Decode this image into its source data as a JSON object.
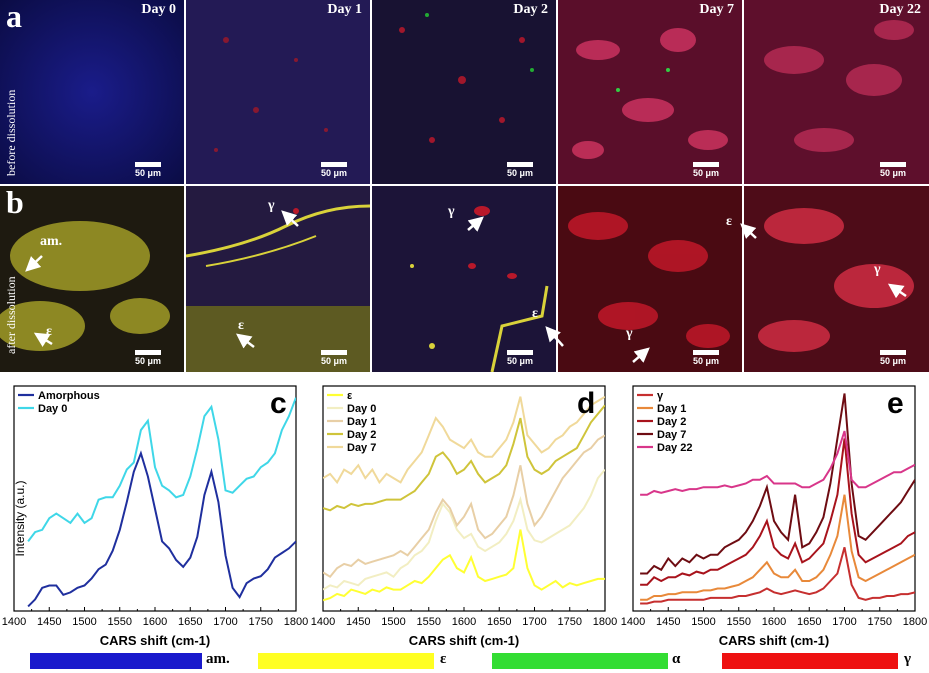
{
  "figure": {
    "panel_a": "a",
    "panel_b": "b",
    "row_before": "before dissolution",
    "row_after": "after dissolution",
    "scale_bar": "50 μm",
    "days": [
      "Day 0",
      "Day 1",
      "Day 2",
      "Day 7",
      "Day 22"
    ],
    "annotations": {
      "am": "am.",
      "eps": "ε",
      "gamma": "γ"
    }
  },
  "colorbar": {
    "items": [
      {
        "label": "am.",
        "color": "#1a1acc"
      },
      {
        "label": "ε",
        "color": "#ffff22"
      },
      {
        "label": "α",
        "color": "#33dd33"
      },
      {
        "label": "γ",
        "color": "#ee1111"
      }
    ]
  },
  "chart_data": [
    {
      "panel": "c",
      "type": "line",
      "xlabel": "CARS shift (cm-1)",
      "ylabel": "Intensity (a.u.)",
      "xlim": [
        1400,
        1800
      ],
      "xticks": [
        1400,
        1450,
        1500,
        1550,
        1600,
        1650,
        1700,
        1750,
        1800
      ],
      "x": [
        1420,
        1430,
        1440,
        1450,
        1460,
        1470,
        1480,
        1490,
        1500,
        1510,
        1520,
        1530,
        1540,
        1550,
        1560,
        1570,
        1580,
        1590,
        1600,
        1610,
        1620,
        1630,
        1640,
        1650,
        1660,
        1670,
        1680,
        1690,
        1700,
        1710,
        1720,
        1730,
        1740,
        1750,
        1760,
        1770,
        1780,
        1790,
        1800
      ],
      "series": [
        {
          "name": "Amorphous",
          "color": "#1f2f9e",
          "values": [
            0.0,
            0.03,
            0.08,
            0.09,
            0.09,
            0.05,
            0.06,
            0.08,
            0.09,
            0.12,
            0.16,
            0.18,
            0.24,
            0.33,
            0.45,
            0.58,
            0.66,
            0.56,
            0.42,
            0.28,
            0.25,
            0.2,
            0.17,
            0.21,
            0.3,
            0.48,
            0.58,
            0.45,
            0.22,
            0.08,
            0.04,
            0.1,
            0.12,
            0.13,
            0.16,
            0.21,
            0.23,
            0.25,
            0.28
          ]
        },
        {
          "name": "Day 0",
          "color": "#3fd7e8",
          "values": [
            0.28,
            0.32,
            0.33,
            0.38,
            0.4,
            0.38,
            0.36,
            0.4,
            0.36,
            0.38,
            0.46,
            0.47,
            0.47,
            0.52,
            0.59,
            0.62,
            0.76,
            0.8,
            0.6,
            0.52,
            0.5,
            0.47,
            0.48,
            0.56,
            0.68,
            0.82,
            0.86,
            0.72,
            0.5,
            0.49,
            0.52,
            0.55,
            0.56,
            0.6,
            0.62,
            0.66,
            0.76,
            0.82,
            0.9
          ]
        }
      ]
    },
    {
      "panel": "d",
      "type": "line",
      "xlabel": "CARS shift (cm-1)",
      "xlim": [
        1400,
        1800
      ],
      "xticks": [
        1400,
        1450,
        1500,
        1550,
        1600,
        1650,
        1700,
        1750,
        1800
      ],
      "x": [
        1400,
        1410,
        1420,
        1430,
        1440,
        1450,
        1460,
        1470,
        1480,
        1490,
        1500,
        1510,
        1520,
        1530,
        1540,
        1550,
        1560,
        1570,
        1580,
        1590,
        1600,
        1610,
        1620,
        1630,
        1640,
        1650,
        1660,
        1670,
        1680,
        1690,
        1700,
        1710,
        1720,
        1730,
        1740,
        1750,
        1760,
        1770,
        1780,
        1790,
        1800
      ],
      "series": [
        {
          "name": "ε",
          "color": "#ffff33",
          "values": [
            0.05,
            0.06,
            0.08,
            0.07,
            0.1,
            0.09,
            0.08,
            0.1,
            0.09,
            0.11,
            0.1,
            0.1,
            0.12,
            0.14,
            0.13,
            0.16,
            0.2,
            0.24,
            0.26,
            0.2,
            0.18,
            0.25,
            0.16,
            0.14,
            0.15,
            0.16,
            0.17,
            0.2,
            0.38,
            0.2,
            0.12,
            0.1,
            0.12,
            0.14,
            0.11,
            0.13,
            0.12,
            0.13,
            0.14,
            0.15,
            0.15
          ]
        },
        {
          "name": "Day 0",
          "color": "#f2eec2",
          "values": [
            0.1,
            0.12,
            0.11,
            0.14,
            0.13,
            0.12,
            0.15,
            0.16,
            0.17,
            0.18,
            0.16,
            0.2,
            0.22,
            0.26,
            0.28,
            0.32,
            0.42,
            0.5,
            0.46,
            0.38,
            0.34,
            0.36,
            0.3,
            0.28,
            0.3,
            0.32,
            0.36,
            0.42,
            0.52,
            0.38,
            0.33,
            0.32,
            0.34,
            0.36,
            0.38,
            0.4,
            0.44,
            0.48,
            0.54,
            0.62,
            0.66
          ]
        },
        {
          "name": "Day 1",
          "color": "#e8cfa6",
          "values": [
            0.18,
            0.16,
            0.2,
            0.22,
            0.21,
            0.24,
            0.22,
            0.23,
            0.24,
            0.25,
            0.26,
            0.28,
            0.26,
            0.3,
            0.34,
            0.38,
            0.46,
            0.52,
            0.48,
            0.4,
            0.44,
            0.5,
            0.38,
            0.34,
            0.36,
            0.4,
            0.44,
            0.54,
            0.68,
            0.5,
            0.4,
            0.44,
            0.5,
            0.56,
            0.62,
            0.66,
            0.7,
            0.74,
            0.76,
            0.8,
            0.82
          ]
        },
        {
          "name": "Day 2",
          "color": "#cfc43a",
          "values": [
            0.48,
            0.47,
            0.49,
            0.48,
            0.5,
            0.49,
            0.5,
            0.5,
            0.51,
            0.52,
            0.52,
            0.52,
            0.54,
            0.56,
            0.6,
            0.64,
            0.72,
            0.74,
            0.7,
            0.64,
            0.66,
            0.7,
            0.64,
            0.6,
            0.62,
            0.64,
            0.68,
            0.78,
            0.9,
            0.72,
            0.66,
            0.64,
            0.66,
            0.7,
            0.72,
            0.74,
            0.76,
            0.82,
            0.88,
            0.92,
            0.96
          ]
        },
        {
          "name": "Day 7",
          "color": "#f0d99a",
          "values": [
            0.62,
            0.64,
            0.6,
            0.66,
            0.64,
            0.68,
            0.62,
            0.66,
            0.6,
            0.64,
            0.62,
            0.6,
            0.66,
            0.7,
            0.74,
            0.82,
            0.9,
            0.86,
            0.8,
            0.78,
            0.76,
            0.8,
            0.74,
            0.72,
            0.72,
            0.76,
            0.8,
            0.88,
            1.0,
            0.82,
            0.78,
            0.74,
            0.76,
            0.8,
            0.82,
            0.86,
            0.88,
            0.92,
            0.96,
            0.98,
            1.0
          ]
        }
      ]
    },
    {
      "panel": "e",
      "type": "line",
      "xlabel": "CARS shift (cm-1)",
      "xlim": [
        1400,
        1800
      ],
      "xticks": [
        1400,
        1450,
        1500,
        1550,
        1600,
        1650,
        1700,
        1750,
        1800
      ],
      "x": [
        1410,
        1420,
        1430,
        1440,
        1450,
        1460,
        1470,
        1480,
        1490,
        1500,
        1510,
        1520,
        1530,
        1540,
        1550,
        1560,
        1570,
        1580,
        1590,
        1600,
        1610,
        1620,
        1630,
        1640,
        1650,
        1660,
        1670,
        1680,
        1690,
        1700,
        1710,
        1720,
        1730,
        1740,
        1750,
        1760,
        1770,
        1780,
        1790,
        1800
      ],
      "series": [
        {
          "name": "γ",
          "color": "#c62f2f",
          "values": [
            0.0,
            0.0,
            0.01,
            0.01,
            0.02,
            0.02,
            0.02,
            0.02,
            0.02,
            0.02,
            0.03,
            0.03,
            0.03,
            0.03,
            0.04,
            0.04,
            0.05,
            0.06,
            0.08,
            0.06,
            0.05,
            0.06,
            0.07,
            0.06,
            0.05,
            0.06,
            0.08,
            0.12,
            0.16,
            0.3,
            0.1,
            0.03,
            0.02,
            0.03,
            0.03,
            0.04,
            0.04,
            0.05,
            0.05,
            0.06
          ]
        },
        {
          "name": "Day 1",
          "color": "#e8893a",
          "values": [
            0.02,
            0.02,
            0.04,
            0.04,
            0.05,
            0.05,
            0.06,
            0.06,
            0.06,
            0.07,
            0.07,
            0.08,
            0.08,
            0.09,
            0.1,
            0.12,
            0.14,
            0.18,
            0.22,
            0.16,
            0.14,
            0.14,
            0.18,
            0.12,
            0.12,
            0.14,
            0.18,
            0.26,
            0.36,
            0.58,
            0.28,
            0.14,
            0.12,
            0.14,
            0.16,
            0.18,
            0.2,
            0.22,
            0.24,
            0.26
          ]
        },
        {
          "name": "Day 2",
          "color": "#a8131c",
          "values": [
            0.1,
            0.1,
            0.14,
            0.12,
            0.14,
            0.14,
            0.16,
            0.15,
            0.17,
            0.16,
            0.18,
            0.18,
            0.2,
            0.22,
            0.24,
            0.26,
            0.3,
            0.36,
            0.44,
            0.3,
            0.26,
            0.24,
            0.32,
            0.22,
            0.24,
            0.28,
            0.32,
            0.44,
            0.58,
            0.88,
            0.48,
            0.26,
            0.22,
            0.24,
            0.26,
            0.28,
            0.3,
            0.32,
            0.36,
            0.38
          ]
        },
        {
          "name": "Day 7",
          "color": "#6e0c12",
          "values": [
            0.16,
            0.16,
            0.2,
            0.18,
            0.24,
            0.2,
            0.24,
            0.22,
            0.26,
            0.24,
            0.26,
            0.26,
            0.3,
            0.32,
            0.34,
            0.38,
            0.44,
            0.52,
            0.62,
            0.44,
            0.38,
            0.34,
            0.58,
            0.3,
            0.32,
            0.38,
            0.46,
            0.64,
            0.88,
            1.12,
            0.64,
            0.36,
            0.34,
            0.38,
            0.42,
            0.46,
            0.5,
            0.54,
            0.6,
            0.66
          ]
        },
        {
          "name": "Day 22",
          "color": "#d8368a",
          "values": [
            0.58,
            0.58,
            0.6,
            0.59,
            0.6,
            0.61,
            0.6,
            0.61,
            0.61,
            0.62,
            0.62,
            0.62,
            0.63,
            0.62,
            0.63,
            0.64,
            0.66,
            0.66,
            0.68,
            0.64,
            0.64,
            0.64,
            0.64,
            0.62,
            0.62,
            0.64,
            0.66,
            0.72,
            0.8,
            0.92,
            0.66,
            0.62,
            0.62,
            0.64,
            0.66,
            0.68,
            0.7,
            0.7,
            0.72,
            0.74
          ]
        }
      ]
    }
  ]
}
